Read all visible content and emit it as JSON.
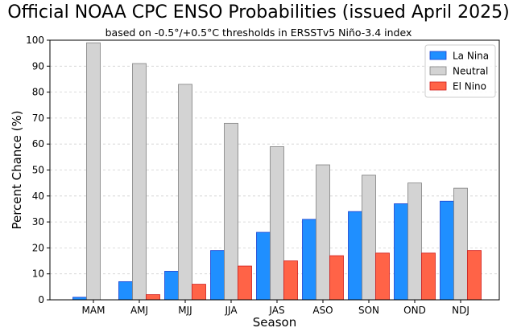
{
  "chart_data": {
    "type": "bar",
    "title": "Official NOAA CPC ENSO Probabilities (issued April 2025)",
    "subtitle": "based on -0.5°/+0.5°C thresholds in ERSSTv5 Niño-3.4 index",
    "xlabel": "Season",
    "ylabel": "Percent Chance (%)",
    "ylim": [
      0,
      100
    ],
    "yticks": [
      0,
      10,
      20,
      30,
      40,
      50,
      60,
      70,
      80,
      90,
      100
    ],
    "grid": "y",
    "legend_position": "top-right",
    "categories": [
      "MAM",
      "AMJ",
      "MJJ",
      "JJA",
      "JAS",
      "ASO",
      "SON",
      "OND",
      "NDJ"
    ],
    "series": [
      {
        "name": "La Nina",
        "color": "#1f8fff",
        "edge": "#1a3fd0",
        "values": [
          1,
          7,
          11,
          19,
          26,
          31,
          34,
          37,
          38
        ]
      },
      {
        "name": "Neutral",
        "color": "#d3d3d3",
        "edge": "#808080",
        "values": [
          99,
          91,
          83,
          68,
          59,
          52,
          48,
          45,
          43
        ]
      },
      {
        "name": "El Nino",
        "color": "#ff6347",
        "edge": "#d01a1a",
        "values": [
          0,
          2,
          6,
          13,
          15,
          17,
          18,
          18,
          19
        ]
      }
    ]
  }
}
